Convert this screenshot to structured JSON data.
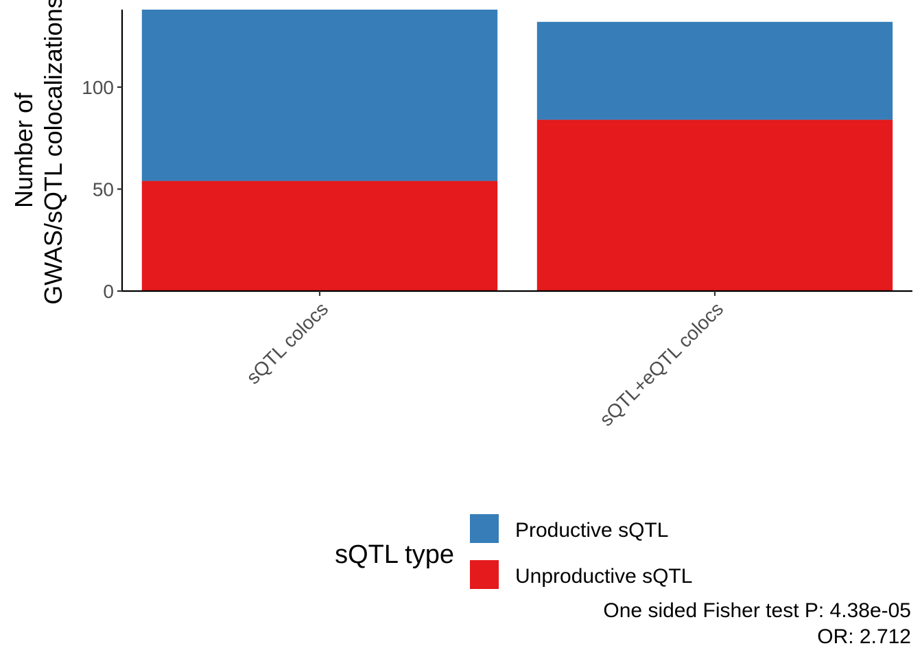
{
  "chart_data": {
    "type": "bar",
    "stacked": true,
    "categories": [
      "sQTL colocs",
      "sQTL+eQTL colocs"
    ],
    "series": [
      {
        "name": "Unproductive sQTL",
        "values": [
          54,
          84
        ],
        "color": "#E41A1C"
      },
      {
        "name": "Productive sQTL",
        "values": [
          84,
          48
        ],
        "color": "#377EB8"
      }
    ],
    "xlabel": "",
    "ylabel": [
      "Number of",
      "GWAS/sQTL colocalizations"
    ],
    "ylim": [
      0,
      138
    ],
    "yticks": [
      0,
      50,
      100
    ],
    "grid": false,
    "legend": {
      "title": "sQTL type",
      "position": "bottom",
      "entries": [
        {
          "label": "Productive sQTL",
          "color": "#377EB8"
        },
        {
          "label": "Unproductive sQTL",
          "color": "#E41A1C"
        }
      ]
    },
    "caption": [
      "One sided Fisher test P: 4.38e-05",
      "OR: 2.712"
    ]
  }
}
